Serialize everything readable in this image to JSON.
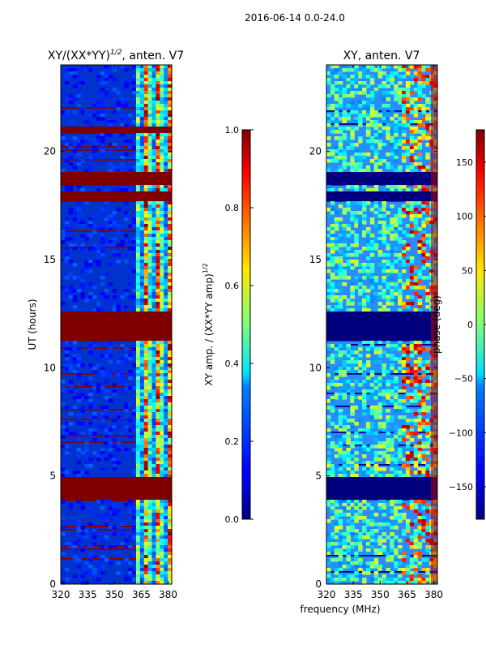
{
  "figure": {
    "suptitle": "2016-06-14 0.0-24.0"
  },
  "chart_data": [
    {
      "type": "heatmap",
      "title": "XY/(XX*YY)",
      "title_sup": "1/2",
      "title_suffix": ", anten. V7",
      "xlabel": "",
      "ylabel": "UT (hours)",
      "xlim": [
        320,
        382
      ],
      "ylim": [
        0,
        24
      ],
      "xticks": [
        320,
        335,
        350,
        365,
        380
      ],
      "yticks": [
        0,
        5,
        10,
        15,
        20
      ],
      "blocked_bands_hours": [
        [
          3.9,
          4.9
        ],
        [
          11.3,
          12.6
        ],
        [
          17.7,
          18.2
        ],
        [
          18.4,
          19.0
        ],
        [
          20.8,
          21.1
        ]
      ],
      "colorbar": {
        "label": "XY amp. / (XX*YY amp)",
        "label_sup": "1/2",
        "range": [
          0.0,
          1.0
        ],
        "ticks": [
          "0.0",
          "0.2",
          "0.4",
          "0.6",
          "0.8",
          "1.0"
        ]
      }
    },
    {
      "type": "heatmap",
      "title": "XY, anten. V7",
      "xlabel": "frequency (MHz)",
      "ylabel": "",
      "xlim": [
        320,
        382
      ],
      "ylim": [
        0,
        24
      ],
      "xticks": [
        320,
        335,
        350,
        365,
        380
      ],
      "yticks": [
        0,
        5,
        10,
        15,
        20
      ],
      "blocked_bands_hours": [
        [
          3.9,
          4.9
        ],
        [
          11.3,
          12.6
        ],
        [
          17.7,
          18.2
        ],
        [
          18.4,
          19.0
        ]
      ],
      "colorbar": {
        "label": "phase (deg)",
        "range": [
          -180,
          180
        ],
        "ticks": [
          "−150",
          "−100",
          "−50",
          "0",
          "50",
          "100",
          "150"
        ]
      }
    }
  ],
  "colors": {
    "jet_low": "#00007f",
    "jet_high": "#7f0000",
    "axes": "#000000"
  }
}
